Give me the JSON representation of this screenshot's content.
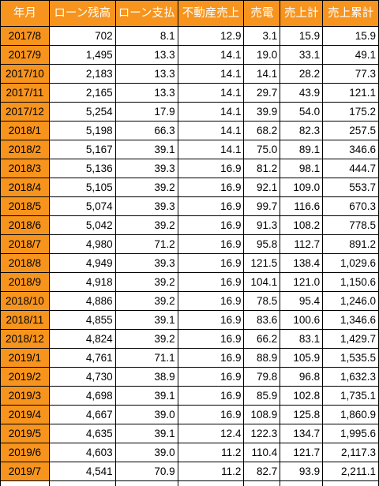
{
  "headers": [
    "年月",
    "ローン残高",
    "ローン支払",
    "不動産売上",
    "売電",
    "売上計",
    "売上累計"
  ],
  "rows": [
    [
      "2017/8",
      "702",
      "8.1",
      "12.9",
      "3.1",
      "15.9",
      "15.9"
    ],
    [
      "2017/9",
      "1,495",
      "13.3",
      "14.1",
      "19.0",
      "33.1",
      "49.1"
    ],
    [
      "2017/10",
      "2,183",
      "13.3",
      "14.1",
      "14.1",
      "28.2",
      "77.3"
    ],
    [
      "2017/11",
      "2,165",
      "13.3",
      "14.1",
      "29.7",
      "43.9",
      "121.1"
    ],
    [
      "2017/12",
      "5,254",
      "17.9",
      "14.1",
      "39.9",
      "54.0",
      "175.2"
    ],
    [
      "2018/1",
      "5,198",
      "66.3",
      "14.1",
      "68.2",
      "82.3",
      "257.5"
    ],
    [
      "2018/2",
      "5,167",
      "39.1",
      "14.1",
      "75.0",
      "89.1",
      "346.6"
    ],
    [
      "2018/3",
      "5,136",
      "39.3",
      "16.9",
      "81.2",
      "98.1",
      "444.7"
    ],
    [
      "2018/4",
      "5,105",
      "39.2",
      "16.9",
      "92.1",
      "109.0",
      "553.7"
    ],
    [
      "2018/5",
      "5,074",
      "39.3",
      "16.9",
      "99.7",
      "116.6",
      "670.3"
    ],
    [
      "2018/6",
      "5,042",
      "39.2",
      "16.9",
      "91.3",
      "108.2",
      "778.5"
    ],
    [
      "2018/7",
      "4,980",
      "71.2",
      "16.9",
      "95.8",
      "112.7",
      "891.2"
    ],
    [
      "2018/8",
      "4,949",
      "39.3",
      "16.9",
      "121.5",
      "138.4",
      "1,029.6"
    ],
    [
      "2018/9",
      "4,918",
      "39.2",
      "16.9",
      "104.1",
      "121.0",
      "1,150.6"
    ],
    [
      "2018/10",
      "4,886",
      "39.2",
      "16.9",
      "78.5",
      "95.4",
      "1,246.0"
    ],
    [
      "2018/11",
      "4,855",
      "39.1",
      "16.9",
      "83.6",
      "100.6",
      "1,346.6"
    ],
    [
      "2018/12",
      "4,824",
      "39.2",
      "16.9",
      "66.2",
      "83.1",
      "1,429.7"
    ],
    [
      "2019/1",
      "4,761",
      "71.1",
      "16.9",
      "88.9",
      "105.9",
      "1,535.5"
    ],
    [
      "2019/2",
      "4,730",
      "38.9",
      "16.9",
      "79.8",
      "96.8",
      "1,632.3"
    ],
    [
      "2019/3",
      "4,698",
      "39.1",
      "16.9",
      "85.9",
      "102.8",
      "1,735.1"
    ],
    [
      "2019/4",
      "4,667",
      "39.0",
      "16.9",
      "108.9",
      "125.8",
      "1,860.9"
    ],
    [
      "2019/5",
      "4,635",
      "39.1",
      "12.4",
      "122.3",
      "134.7",
      "1,995.6"
    ],
    [
      "2019/6",
      "4,603",
      "39.0",
      "11.2",
      "110.4",
      "121.7",
      "2,117.3"
    ],
    [
      "2019/7",
      "4,541",
      "70.9",
      "11.2",
      "82.7",
      "93.9",
      "2,211.1"
    ]
  ]
}
